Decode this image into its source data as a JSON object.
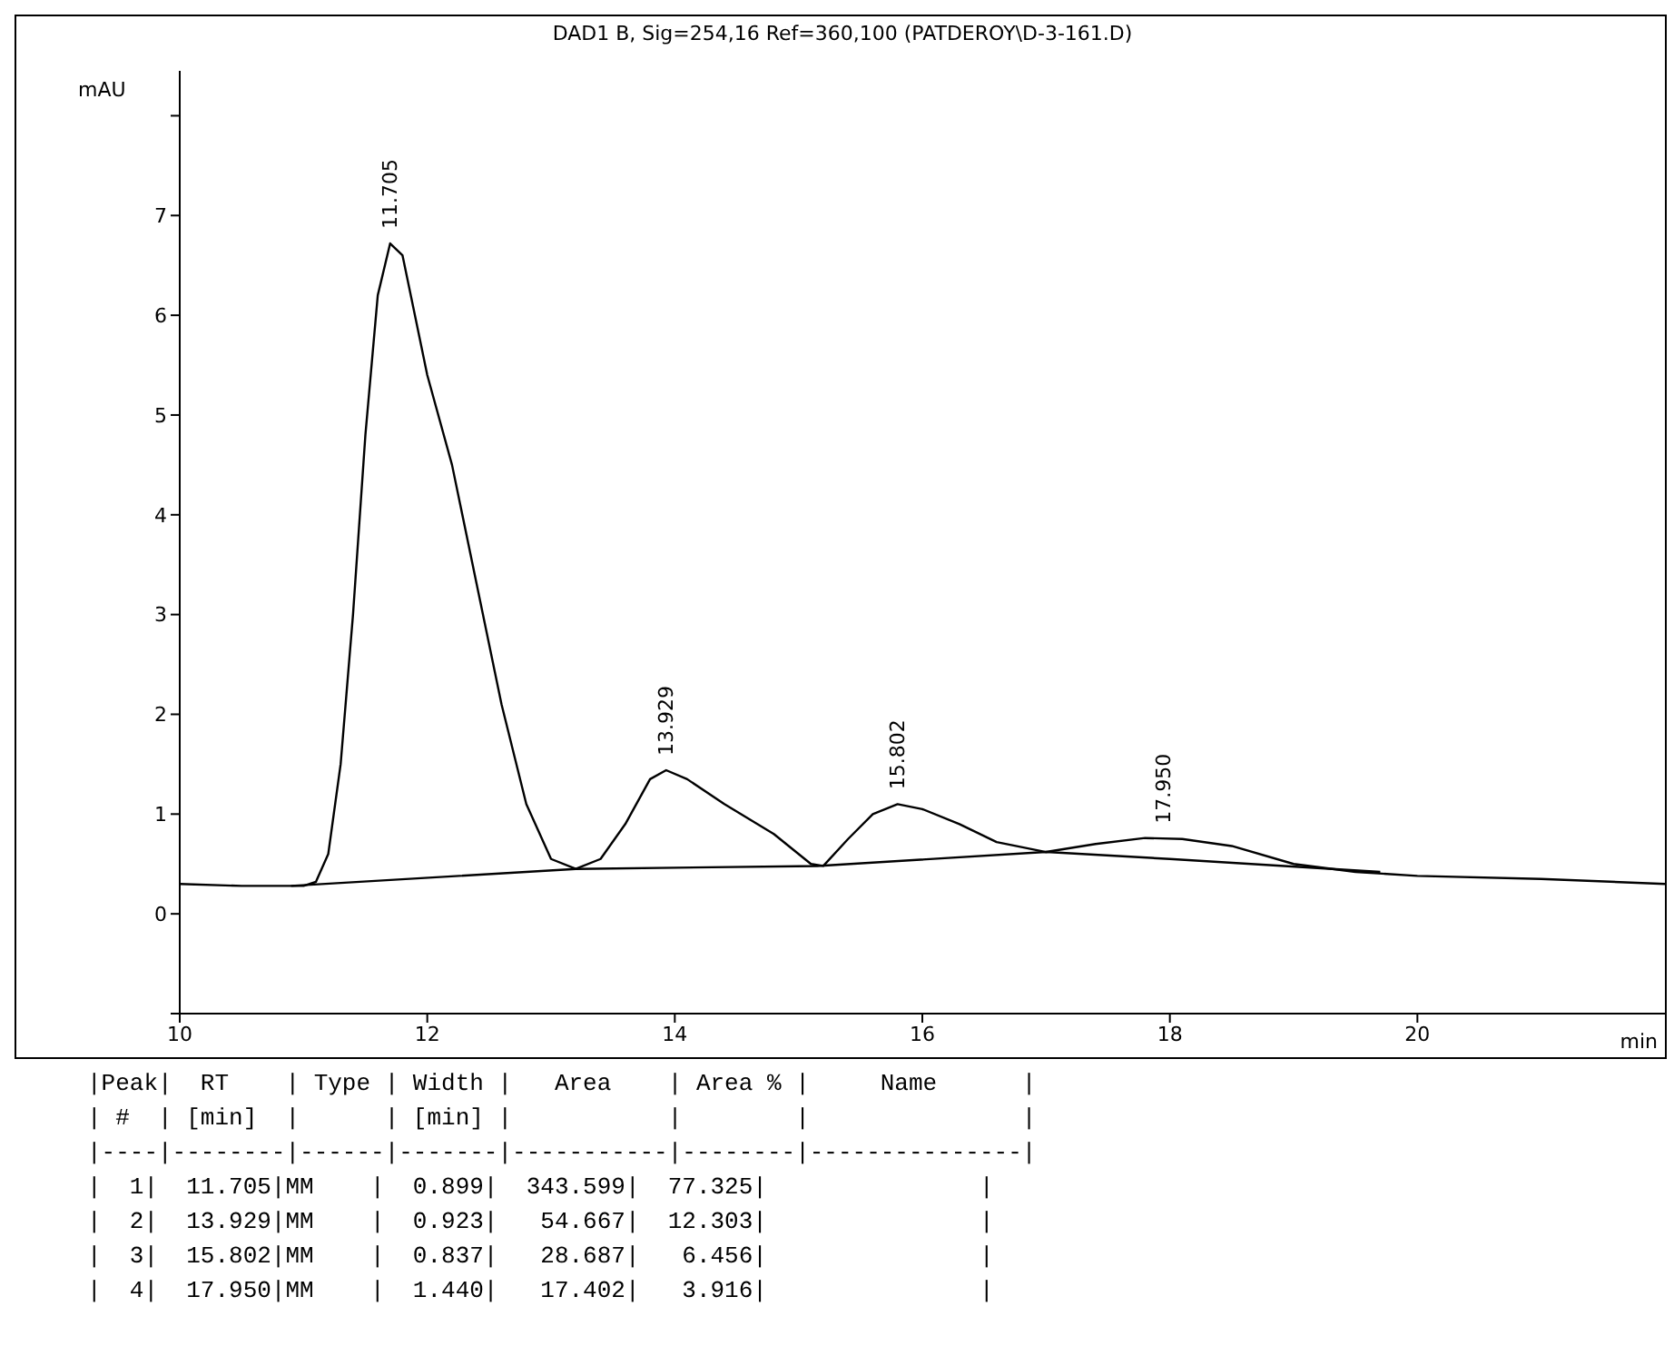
{
  "chart_data": {
    "type": "line",
    "title": "DAD1 B, Sig=254,16 Ref=360,100 (PATDEROY\\D-3-161.D)",
    "xlabel": "min",
    "ylabel": "mAU",
    "xlim": [
      10,
      22
    ],
    "xticks": [
      10,
      12,
      14,
      16,
      18,
      20
    ],
    "ylim": [
      -1,
      8.45
    ],
    "yticks": [
      {
        "value": -1,
        "label": null
      },
      0,
      1,
      2,
      3,
      4,
      5,
      6,
      7,
      {
        "value": 8,
        "label": null
      }
    ],
    "grid": false,
    "legend": false,
    "marker": "none",
    "line_style": "solid",
    "series": [
      {
        "color": "#000000",
        "x": [
          10,
          10.5,
          11,
          11.1,
          11.2,
          11.3,
          11.4,
          11.5,
          11.6,
          11.7,
          11.8,
          11.9,
          12.0,
          12.2,
          12.4,
          12.6,
          12.8,
          13.0,
          13.2,
          13.4,
          13.6,
          13.8,
          13.93,
          14.1,
          14.4,
          14.8,
          15.1,
          15.2,
          15.4,
          15.6,
          15.8,
          16.0,
          16.3,
          16.6,
          17.0,
          17.4,
          17.8,
          18.1,
          18.5,
          19.0,
          19.5,
          20,
          21,
          22
        ],
        "values": [
          0.3,
          0.28,
          0.28,
          0.32,
          0.6,
          1.5,
          3.0,
          4.8,
          6.2,
          6.72,
          6.6,
          6.0,
          5.4,
          4.5,
          3.3,
          2.1,
          1.1,
          0.55,
          0.45,
          0.55,
          0.9,
          1.35,
          1.44,
          1.35,
          1.1,
          0.8,
          0.5,
          0.48,
          0.75,
          1.0,
          1.1,
          1.05,
          0.9,
          0.72,
          0.62,
          0.7,
          0.76,
          0.75,
          0.68,
          0.5,
          0.42,
          0.38,
          0.35,
          0.3
        ]
      },
      {
        "color": "#000000",
        "x": [
          10.9,
          13.2,
          15.15,
          17.0,
          18.0,
          19.7
        ],
        "values": [
          0.28,
          0.45,
          0.48,
          0.62,
          0.55,
          0.42
        ]
      }
    ],
    "annotations": [
      {
        "text": "11.705",
        "x": 11.705,
        "y": 6.72
      },
      {
        "text": "13.929",
        "x": 13.929,
        "y": 1.44
      },
      {
        "text": "15.802",
        "x": 15.802,
        "y": 1.1
      },
      {
        "text": "17.950",
        "x": 17.95,
        "y": 0.76
      },
      "|Peak|  RT    | Type | Width |   Area    | Area % |     Name      |",
      "| #  | [min]  |      | [min] |           |        |               |",
      "|----|--------|------|-------|-----------|--------|---------------|",
      "|  1|  11.705|MM    |  0.899|  343.599|  77.325|               |",
      "|  2|  13.929|MM    |  0.923|   54.667|  12.303|               |",
      "|  3|  15.802|MM    |  0.837|   28.687|   6.456|               |",
      "|  4|  17.950|MM    |  1.440|   17.402|   3.916|               |"
    ]
  }
}
